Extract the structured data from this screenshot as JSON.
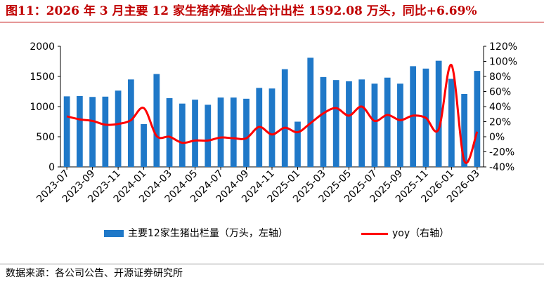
{
  "title": "图11：2026 年 3 月主要 12 家生猪养殖企业合计出栏 1592.08 万头，同比+6.69%",
  "source": "数据来源：各公司公告、开源证券研究所",
  "colors": {
    "bar": "#1f78c8",
    "line": "#ff0000",
    "title": "#c00000"
  },
  "chart_data": {
    "type": "bar",
    "x": [
      "2023-07",
      "2023-08",
      "2023-09",
      "2023-10",
      "2023-11",
      "2023-12",
      "2024-01",
      "2024-02",
      "2024-03",
      "2024-04",
      "2024-05",
      "2024-06",
      "2024-07",
      "2024-08",
      "2024-09",
      "2024-10",
      "2024-11",
      "2024-12",
      "2025-01",
      "2025-02",
      "2025-03",
      "2025-04",
      "2025-05",
      "2025-06",
      "2025-07",
      "2025-08",
      "2025-09",
      "2025-10",
      "2025-11",
      "2025-12",
      "2026-01",
      "2026-02",
      "2026-03"
    ],
    "x_tick_labels": [
      "2023-07",
      "2023-09",
      "2023-11",
      "2024-01",
      "2024-03",
      "2024-05",
      "2024-07",
      "2024-09",
      "2024-11",
      "2025-01",
      "2025-03",
      "2025-05",
      "2025-07",
      "2025-09",
      "2025-11",
      "2026-01",
      "2026-03"
    ],
    "series": [
      {
        "name": "主要12家生猪出栏量（万头，左轴）",
        "type": "bar",
        "axis": "left",
        "values": [
          1170,
          1175,
          1160,
          1165,
          1265,
          1450,
          710,
          1540,
          1140,
          1050,
          1115,
          1030,
          1150,
          1150,
          1130,
          1310,
          1300,
          1620,
          750,
          1810,
          1490,
          1440,
          1420,
          1450,
          1380,
          1480,
          1380,
          1670,
          1630,
          1760,
          1460,
          1210,
          1592
        ]
      },
      {
        "name": "yoy（右轴）",
        "type": "line",
        "axis": "right",
        "values": [
          27,
          23,
          21,
          16,
          17,
          22,
          38,
          1,
          0,
          -8,
          -5,
          -5,
          -1,
          -2,
          -2,
          13,
          3,
          12,
          6,
          18,
          31,
          38,
          28,
          40,
          21,
          29,
          22,
          28,
          25,
          10,
          95,
          -32,
          6.69
        ]
      }
    ],
    "y_left": {
      "lim": [
        0,
        2000
      ],
      "ticks": [
        "0",
        "500",
        "1000",
        "1500",
        "2000"
      ]
    },
    "y_right": {
      "lim": [
        -40,
        120
      ],
      "ticks": [
        "-40%",
        "-20%",
        "0%",
        "20%",
        "40%",
        "60%",
        "80%",
        "100%",
        "120%"
      ]
    },
    "grid": false,
    "legend_position": "bottom"
  }
}
